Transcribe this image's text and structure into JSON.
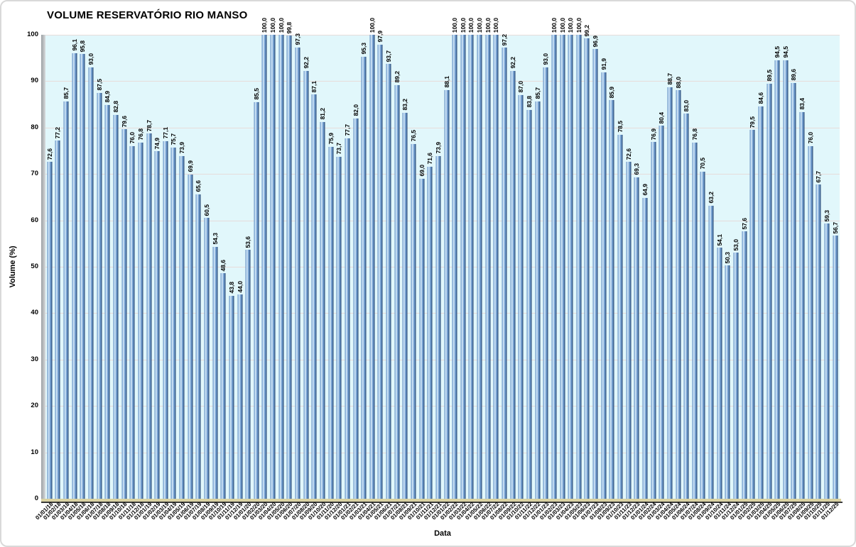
{
  "colors": {
    "plot_background": "#e1f7fb",
    "bar_main": "#5e8abd",
    "bar_highlight": "#e6f3fc",
    "bar_shadow": "#27426a",
    "gridline": "#e7dcda",
    "floor": "#d9d2a2",
    "frame_border": "#d9d9d9"
  },
  "chart_data": {
    "type": "bar",
    "title": "VOLUME RESERVATÓRIO RIO MANSO",
    "xlabel": "Data",
    "ylabel": "Volume (%)",
    "ylim": [
      0,
      100
    ],
    "yticks": [
      0,
      10,
      20,
      30,
      40,
      50,
      60,
      70,
      80,
      90,
      100
    ],
    "grid": "horizontal",
    "legend": "none",
    "categories": [
      "01/01/18",
      "01/02/18",
      "01/03/18",
      "01/04/18",
      "01/05/18",
      "01/06/18",
      "01/07/18",
      "01/08/18",
      "01/09/18",
      "01/10/18",
      "01/11/18",
      "01/12/18",
      "01/01/19",
      "01/02/19",
      "01/03/19",
      "01/04/19",
      "01/05/19",
      "01/06/19",
      "01/07/19",
      "01/08/19",
      "01/09/19",
      "01/10/19",
      "01/11/19",
      "01/12/19",
      "01/01/20",
      "01/02/20",
      "01/03/20",
      "01/04/20",
      "01/05/20",
      "01/06/20",
      "01/07/20",
      "01/08/20",
      "01/09/20",
      "01/10/20",
      "01/11/20",
      "01/12/20",
      "01/01/21",
      "01/02/21",
      "01/03/21",
      "01/04/21",
      "01/05/21",
      "01/06/21",
      "01/07/21",
      "01/08/21",
      "01/09/21",
      "01/10/21",
      "01/11/21",
      "01/12/21",
      "01/01/22",
      "01/02/22",
      "01/03/22",
      "01/04/22",
      "01/05/22",
      "01/06/22",
      "01/07/22",
      "01/08/22",
      "01/09/22",
      "01/10/22",
      "01/11/22",
      "01/12/22",
      "01/01/23",
      "01/02/23",
      "01/03/23",
      "01/04/23",
      "01/05/23",
      "01/06/23",
      "01/07/23",
      "01/08/23",
      "01/09/23",
      "01/10/23",
      "01/11/23",
      "01/12/23",
      "01/01/24",
      "01/02/24",
      "01/03/24",
      "01/04/24",
      "01/05/24",
      "01/06/24",
      "01/07/24",
      "01/08/24",
      "01/09/24",
      "01/10/24",
      "01/11/24",
      "01/12/24",
      "01/01/25",
      "01/02/25",
      "01/03/25",
      "01/04/25",
      "01/05/25",
      "01/06/25",
      "01/07/25",
      "01/08/25",
      "01/09/25",
      "01/10/25",
      "01/11/25",
      "01/12/25"
    ],
    "values": [
      72.6,
      77.2,
      85.7,
      96.1,
      95.8,
      93.0,
      87.5,
      84.9,
      82.8,
      79.6,
      76.0,
      76.8,
      78.7,
      74.9,
      77.1,
      75.7,
      73.9,
      69.9,
      65.6,
      60.5,
      54.3,
      48.6,
      43.8,
      44.0,
      53.6,
      85.5,
      100.0,
      100.0,
      100.0,
      99.8,
      97.3,
      92.2,
      87.1,
      81.2,
      75.9,
      73.7,
      77.7,
      82.0,
      95.3,
      100.0,
      97.9,
      93.7,
      89.2,
      83.2,
      76.5,
      69.0,
      71.6,
      73.9,
      88.1,
      100.0,
      100.0,
      100.0,
      100.0,
      100.0,
      100.0,
      97.2,
      92.2,
      87.0,
      83.8,
      85.7,
      93.0,
      100.0,
      100.0,
      100.0,
      100.0,
      99.2,
      96.9,
      91.9,
      85.9,
      78.5,
      72.6,
      69.3,
      64.9,
      76.9,
      80.4,
      88.7,
      88.0,
      83.0,
      76.8,
      70.5,
      63.2,
      54.1,
      50.3,
      53.0,
      57.6,
      79.5,
      84.6,
      89.5,
      94.5,
      94.5,
      89.6,
      83.4,
      76.0,
      67.7,
      59.3,
      56.7
    ],
    "value_labels": [
      "72,6",
      "77,2",
      "85,7",
      "96,1",
      "95,8",
      "93,0",
      "87,5",
      "84,9",
      "82,8",
      "79,6",
      "76,0",
      "76,8",
      "78,7",
      "74,9",
      "77,1",
      "75,7",
      "73,9",
      "69,9",
      "65,6",
      "60,5",
      "54,3",
      "48,6",
      "43,8",
      "44,0",
      "53,6",
      "85,5",
      "100,0",
      "100,0",
      "100,0",
      "99,8",
      "97,3",
      "92,2",
      "87,1",
      "81,2",
      "75,9",
      "73,7",
      "77,7",
      "82,0",
      "95,3",
      "100,0",
      "97,9",
      "93,7",
      "89,2",
      "83,2",
      "76,5",
      "69,0",
      "71,6",
      "73,9",
      "88,1",
      "100,0",
      "100,0",
      "100,0",
      "100,0",
      "100,0",
      "100,0",
      "97,2",
      "92,2",
      "87,0",
      "83,8",
      "85,7",
      "93,0",
      "100,0",
      "100,0",
      "100,0",
      "100,0",
      "99,2",
      "96,9",
      "91,9",
      "85,9",
      "78,5",
      "72,6",
      "69,3",
      "64,9",
      "76,9",
      "80,4",
      "88,7",
      "88,0",
      "83,0",
      "76,8",
      "70,5",
      "63,2",
      "54,1",
      "50,3",
      "53,0",
      "57,6",
      "79,5",
      "84,6",
      "89,5",
      "94,5",
      "94,5",
      "89,6",
      "83,4",
      "76,0",
      "67,7",
      "59,3",
      "56,7"
    ]
  }
}
